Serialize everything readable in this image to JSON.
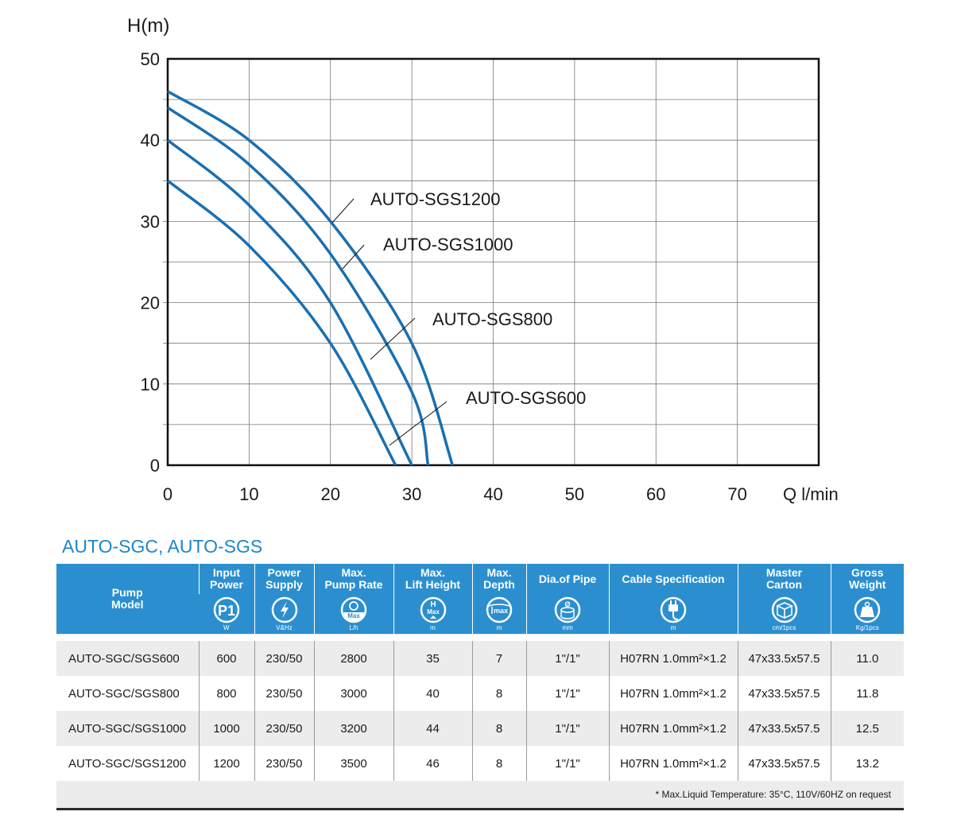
{
  "chart_data": {
    "type": "line",
    "ylabel": "H(m)",
    "xlabel": "Q l/min",
    "xlim": [
      0,
      80
    ],
    "ylim": [
      0,
      50
    ],
    "x_ticks": [
      "0",
      "10",
      "20",
      "30",
      "40",
      "50",
      "60",
      "70"
    ],
    "y_ticks": [
      "0",
      "10",
      "20",
      "30",
      "40",
      "50"
    ],
    "grid": true,
    "line_color": "#1a6fb0",
    "series": [
      {
        "name": "AUTO-SGS600",
        "points": [
          [
            0,
            35
          ],
          [
            10,
            27
          ],
          [
            20,
            15
          ],
          [
            28,
            0
          ]
        ]
      },
      {
        "name": "AUTO-SGS800",
        "points": [
          [
            0,
            40
          ],
          [
            10,
            32
          ],
          [
            20,
            20
          ],
          [
            30,
            0
          ]
        ]
      },
      {
        "name": "AUTO-SGS1000",
        "points": [
          [
            0,
            44
          ],
          [
            10,
            37
          ],
          [
            20,
            26
          ],
          [
            30,
            9
          ],
          [
            32,
            0
          ]
        ]
      },
      {
        "name": "AUTO-SGS1200",
        "points": [
          [
            0,
            46
          ],
          [
            10,
            40
          ],
          [
            20,
            30
          ],
          [
            30,
            15
          ],
          [
            35,
            0
          ]
        ]
      }
    ]
  },
  "table": {
    "title": "AUTO-SGC, AUTO-SGS",
    "model_header": [
      "Pump",
      "Model"
    ],
    "columns": [
      {
        "label": [
          "Input",
          "Power"
        ],
        "unit": "W",
        "icon": "p1-icon",
        "icon_text": "P1"
      },
      {
        "label": [
          "Power",
          "Supply"
        ],
        "unit": "V&Hz",
        "icon": "lightning-icon",
        "icon_text": ""
      },
      {
        "label": [
          "Max.",
          "Pump Rate"
        ],
        "unit": "L/h",
        "icon": "max-flow-icon",
        "icon_text": "Max"
      },
      {
        "label": [
          "Max.",
          "Lift Height"
        ],
        "unit": "m",
        "icon": "lift-height-icon",
        "icon_text": "Max"
      },
      {
        "label": [
          "Max.",
          "Depth"
        ],
        "unit": "m",
        "icon": "depth-icon",
        "icon_text": "max"
      },
      {
        "label": [
          "Dia.of Pipe"
        ],
        "unit": "mm",
        "icon": "pipe-diameter-icon",
        "icon_text": "Ø"
      },
      {
        "label": [
          "Cable Specification"
        ],
        "unit": "m",
        "icon": "plug-icon",
        "icon_text": ""
      },
      {
        "label": [
          "Master",
          "Carton"
        ],
        "unit": "cm/1pcs",
        "icon": "carton-icon",
        "icon_text": ""
      },
      {
        "label": [
          "Gross",
          "Weight"
        ],
        "unit": "Kg/1pcs",
        "icon": "weight-icon",
        "icon_text": ""
      }
    ],
    "rows": [
      [
        "AUTO-SGC/SGS600",
        "600",
        "230/50",
        "2800",
        "35",
        "7",
        "1\"/1\"",
        "H07RN 1.0mm²×1.2",
        "47x33.5x57.5",
        "11.0"
      ],
      [
        "AUTO-SGC/SGS800",
        "800",
        "230/50",
        "3000",
        "40",
        "8",
        "1\"/1\"",
        "H07RN 1.0mm²×1.2",
        "47x33.5x57.5",
        "11.8"
      ],
      [
        "AUTO-SGC/SGS1000",
        "1000",
        "230/50",
        "3200",
        "44",
        "8",
        "1\"/1\"",
        "H07RN 1.0mm²×1.2",
        "47x33.5x57.5",
        "12.5"
      ],
      [
        "AUTO-SGC/SGS1200",
        "1200",
        "230/50",
        "3500",
        "46",
        "8",
        "1\"/1\"",
        "H07RN 1.0mm²×1.2",
        "47x33.5x57.5",
        "13.2"
      ]
    ],
    "note": "* Max.Liquid Temperature: 35°C, 110V/60HZ on request",
    "header_color": "#2b8fcf"
  }
}
